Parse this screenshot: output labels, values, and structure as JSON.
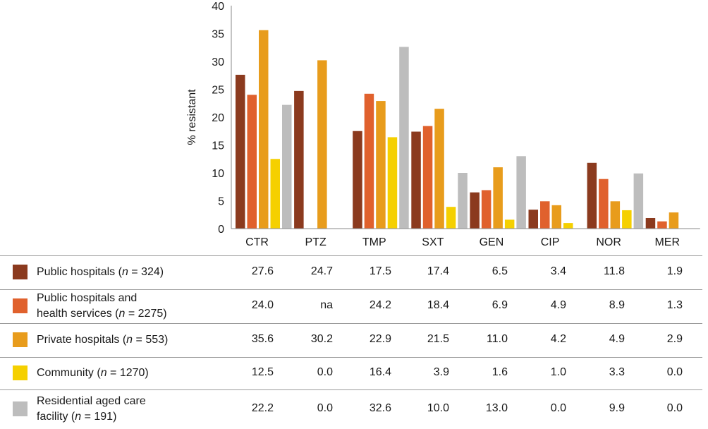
{
  "chart_data": {
    "type": "bar",
    "ylabel": "% resistant",
    "ylim": [
      0,
      40
    ],
    "yticks": [
      0,
      5,
      10,
      15,
      20,
      25,
      30,
      35,
      40
    ],
    "categories": [
      "CTR",
      "PTZ",
      "TMP",
      "SXT",
      "GEN",
      "CIP",
      "NOR",
      "MER"
    ],
    "series": [
      {
        "name_parts": [
          "Public hospitals (",
          "n",
          " = 324)"
        ],
        "color": "#8B3A1E",
        "values": [
          27.6,
          24.7,
          17.5,
          17.4,
          6.5,
          3.4,
          11.8,
          1.9
        ],
        "labels": [
          "27.6",
          "24.7",
          "17.5",
          "17.4",
          "6.5",
          "3.4",
          "11.8",
          "1.9"
        ]
      },
      {
        "name_parts": [
          "Public hospitals and",
          "health services (",
          "n",
          " = 2275)"
        ],
        "color": "#E0612D",
        "values": [
          24.0,
          null,
          24.2,
          18.4,
          6.9,
          4.9,
          8.9,
          1.3
        ],
        "labels": [
          "24.0",
          "na",
          "24.2",
          "18.4",
          "6.9",
          "4.9",
          "8.9",
          "1.3"
        ]
      },
      {
        "name_parts": [
          "Private hospitals (",
          "n",
          " = 553)"
        ],
        "color": "#E89C1C",
        "values": [
          35.6,
          30.2,
          22.9,
          21.5,
          11.0,
          4.2,
          4.9,
          2.9
        ],
        "labels": [
          "35.6",
          "30.2",
          "22.9",
          "21.5",
          "11.0",
          "4.2",
          "4.9",
          "2.9"
        ]
      },
      {
        "name_parts": [
          "Community (",
          "n",
          " = 1270)"
        ],
        "color": "#F5D000",
        "values": [
          12.5,
          0.0,
          16.4,
          3.9,
          1.6,
          1.0,
          3.3,
          0.0
        ],
        "labels": [
          "12.5",
          "0.0",
          "16.4",
          "3.9",
          "1.6",
          "1.0",
          "3.3",
          "0.0"
        ]
      },
      {
        "name_parts": [
          "Residential aged care",
          "facility (",
          "n",
          " = 191)"
        ],
        "color": "#BDBDBD",
        "values": [
          22.2,
          0.0,
          32.6,
          10.0,
          13.0,
          0.0,
          9.9,
          0.0
        ],
        "labels": [
          "22.2",
          "0.0",
          "32.6",
          "10.0",
          "13.0",
          "0.0",
          "9.9",
          "0.0"
        ]
      }
    ]
  }
}
